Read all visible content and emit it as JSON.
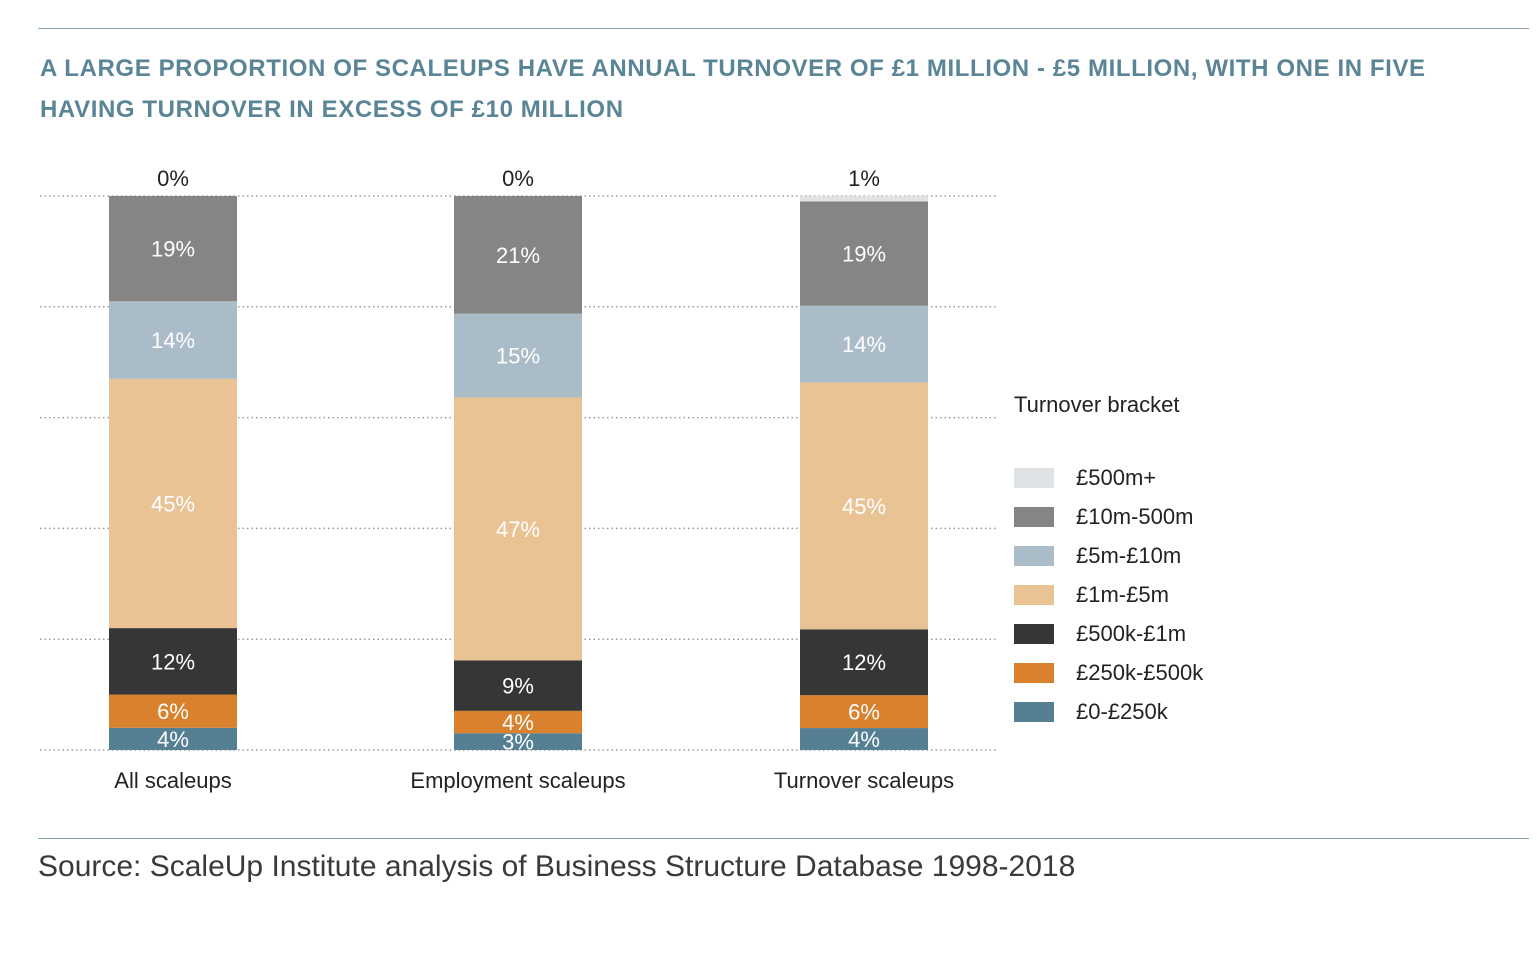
{
  "title": "A LARGE PROPORTION OF SCALEUPS HAVE ANNUAL TURNOVER OF £1 MILLION - £5 MILLION, WITH ONE IN FIVE HAVING TURNOVER IN EXCESS OF £10 MILLION",
  "source": "Source: ScaleUp Institute analysis of Business Structure Database 1998-2018",
  "legend": {
    "title": "Turnover bracket",
    "items": [
      {
        "label": "£500m+",
        "color": "#dfe3e6"
      },
      {
        "label": "£10m-500m",
        "color": "#878583"
      },
      {
        "label": "£5m-£10m",
        "color": "#a9bcc8"
      },
      {
        "label": "£1m-£5m",
        "color": "#eac394"
      },
      {
        "label": "£500k-£1m",
        "color": "#363636"
      },
      {
        "label": "£250k-£500k",
        "color": "#d9812c"
      },
      {
        "label": "£0-£250k",
        "color": "#557f92"
      }
    ]
  },
  "chart_data": {
    "type": "bar",
    "stacked": true,
    "orientation": "vertical",
    "categories": [
      "All scaleups",
      "Employment scaleups",
      "Turnover scaleups"
    ],
    "ylim": [
      0,
      100
    ],
    "grid": "dotted horizontal",
    "legend_position": "right",
    "series": [
      {
        "name": "£0-£250k",
        "color": "#557f92",
        "values": [
          4,
          3,
          4
        ],
        "labels": [
          "4%",
          "3%",
          "4%"
        ],
        "label_color": "#ffffff"
      },
      {
        "name": "£250k-£500k",
        "color": "#d9812c",
        "values": [
          6,
          4,
          6
        ],
        "labels": [
          "6%",
          "4%",
          "6%"
        ],
        "label_color": "#ffffff"
      },
      {
        "name": "£500k-£1m",
        "color": "#363636",
        "values": [
          12,
          9,
          12
        ],
        "labels": [
          "12%",
          "9%",
          "12%"
        ],
        "label_color": "#ffffff"
      },
      {
        "name": "£1m-£5m",
        "color": "#eac394",
        "values": [
          45,
          47,
          45
        ],
        "labels": [
          "45%",
          "47%",
          "45%"
        ],
        "label_color": "#ffffff"
      },
      {
        "name": "£5m-£10m",
        "color": "#a9bcc8",
        "values": [
          14,
          15,
          14
        ],
        "labels": [
          "14%",
          "15%",
          "14%"
        ],
        "label_color": "#ffffff"
      },
      {
        "name": "£10m-500m",
        "color": "#878583",
        "values": [
          19,
          21,
          19
        ],
        "labels": [
          "19%",
          "21%",
          "19%"
        ],
        "label_color": "#ffffff"
      },
      {
        "name": "£500m+",
        "color": "#dfe3e6",
        "values": [
          0,
          0,
          1
        ],
        "labels": [
          "0%",
          "0%",
          "1%"
        ],
        "label_color": "#222222"
      }
    ]
  }
}
